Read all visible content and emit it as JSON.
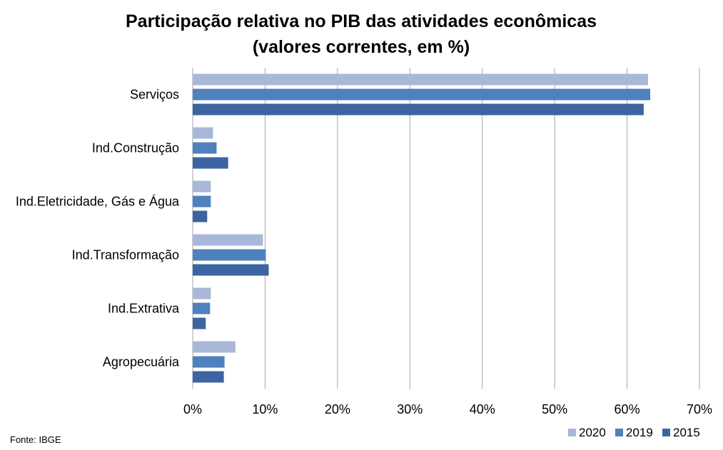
{
  "chart_data": {
    "type": "bar",
    "orientation": "horizontal",
    "title": "Participação relativa no PIB das atividades econômicas",
    "subtitle": "(valores correntes, em %)",
    "source": "Fonte: IBGE",
    "categories": [
      "Serviços",
      "Ind.Construção",
      "Ind.Eletricidade, Gás e Água",
      "Ind.Transformação",
      "Ind.Extrativa",
      "Agropecuária"
    ],
    "series": [
      {
        "name": "2020",
        "color": "#A9B8D8",
        "values": [
          62.9,
          2.8,
          2.5,
          9.7,
          2.5,
          5.9
        ]
      },
      {
        "name": "2019",
        "color": "#4F81BD",
        "values": [
          63.2,
          3.3,
          2.5,
          10.1,
          2.4,
          4.4
        ]
      },
      {
        "name": "2015",
        "color": "#3B64A0",
        "values": [
          62.3,
          4.9,
          2.0,
          10.5,
          1.8,
          4.3
        ]
      }
    ],
    "xlim": [
      0,
      70
    ],
    "xticks": [
      "0%",
      "10%",
      "20%",
      "30%",
      "40%",
      "50%",
      "60%",
      "70%"
    ],
    "grid": true,
    "legend_position": "bottom-right"
  }
}
